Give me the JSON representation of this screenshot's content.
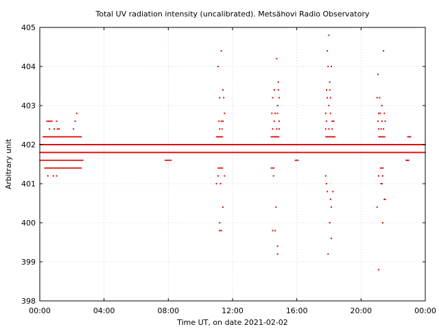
{
  "chart_data": {
    "type": "scatter",
    "title": "Total UV radiation intensity (uncalibrated). Metsähovi Radio Observatory",
    "xlabel": "Time UT, on date 2021-02-02",
    "ylabel": "Arbitrary unit",
    "xlim": [
      0,
      24
    ],
    "ylim": [
      398,
      405
    ],
    "x_ticks": [
      {
        "value": 0,
        "label": "00:00"
      },
      {
        "value": 4,
        "label": "04:00"
      },
      {
        "value": 8,
        "label": "08:00"
      },
      {
        "value": 12,
        "label": "12:00"
      },
      {
        "value": 16,
        "label": "16:00"
      },
      {
        "value": 20,
        "label": "20:00"
      },
      {
        "value": 24,
        "label": "00:00"
      }
    ],
    "y_ticks": [
      398,
      399,
      400,
      401,
      402,
      403,
      404,
      405
    ],
    "grid": true,
    "color": "#e00000",
    "baseline_series": [
      {
        "name": "402.0 band",
        "value": 402.0,
        "x_ranges": [
          [
            0.0,
            24.0
          ]
        ]
      },
      {
        "name": "401.8 band",
        "value": 401.8,
        "x_ranges": [
          [
            0.0,
            24.0
          ]
        ]
      },
      {
        "name": "401.6 band",
        "value": 401.6,
        "x_ranges": [
          [
            0.0,
            2.7
          ],
          [
            7.8,
            8.2
          ],
          [
            15.9,
            16.1
          ],
          [
            22.8,
            23.0
          ]
        ]
      },
      {
        "name": "402.2 band",
        "value": 402.2,
        "x_ranges": [
          [
            0.2,
            2.6
          ],
          [
            11.0,
            11.4
          ],
          [
            14.4,
            14.9
          ],
          [
            17.8,
            18.4
          ],
          [
            21.1,
            21.5
          ],
          [
            22.9,
            23.1
          ]
        ]
      },
      {
        "name": "401.4 band",
        "value": 401.4,
        "x_ranges": [
          [
            0.3,
            2.6
          ],
          [
            11.1,
            11.4
          ],
          [
            14.4,
            14.6
          ],
          [
            21.2,
            21.4
          ]
        ]
      }
    ],
    "points": [
      {
        "x": 0.45,
        "y": 402.6
      },
      {
        "x": 0.55,
        "y": 402.6
      },
      {
        "x": 0.65,
        "y": 402.6
      },
      {
        "x": 0.75,
        "y": 402.6
      },
      {
        "x": 0.6,
        "y": 402.4
      },
      {
        "x": 0.9,
        "y": 402.4
      },
      {
        "x": 1.05,
        "y": 402.6
      },
      {
        "x": 1.1,
        "y": 402.4
      },
      {
        "x": 1.2,
        "y": 402.4
      },
      {
        "x": 0.5,
        "y": 401.2
      },
      {
        "x": 0.85,
        "y": 401.2
      },
      {
        "x": 1.05,
        "y": 401.2
      },
      {
        "x": 2.1,
        "y": 402.4
      },
      {
        "x": 2.2,
        "y": 402.6
      },
      {
        "x": 2.3,
        "y": 402.8
      },
      {
        "x": 11.1,
        "y": 404.0
      },
      {
        "x": 11.3,
        "y": 404.4
      },
      {
        "x": 11.4,
        "y": 403.4
      },
      {
        "x": 11.2,
        "y": 403.2
      },
      {
        "x": 11.45,
        "y": 403.2
      },
      {
        "x": 11.5,
        "y": 402.8
      },
      {
        "x": 11.15,
        "y": 402.6
      },
      {
        "x": 11.3,
        "y": 402.6
      },
      {
        "x": 11.4,
        "y": 402.6
      },
      {
        "x": 11.2,
        "y": 402.4
      },
      {
        "x": 11.35,
        "y": 402.4
      },
      {
        "x": 11.1,
        "y": 401.2
      },
      {
        "x": 11.5,
        "y": 401.2
      },
      {
        "x": 11.0,
        "y": 401.0
      },
      {
        "x": 11.25,
        "y": 401.0
      },
      {
        "x": 11.4,
        "y": 400.4
      },
      {
        "x": 11.2,
        "y": 400.0
      },
      {
        "x": 11.2,
        "y": 399.8
      },
      {
        "x": 11.3,
        "y": 399.8
      },
      {
        "x": 14.75,
        "y": 404.2
      },
      {
        "x": 14.85,
        "y": 403.6
      },
      {
        "x": 14.6,
        "y": 403.4
      },
      {
        "x": 14.85,
        "y": 403.4
      },
      {
        "x": 14.5,
        "y": 403.2
      },
      {
        "x": 14.9,
        "y": 403.2
      },
      {
        "x": 14.8,
        "y": 403.0
      },
      {
        "x": 14.45,
        "y": 402.8
      },
      {
        "x": 14.65,
        "y": 402.8
      },
      {
        "x": 14.8,
        "y": 402.8
      },
      {
        "x": 14.6,
        "y": 402.6
      },
      {
        "x": 14.9,
        "y": 402.6
      },
      {
        "x": 14.5,
        "y": 402.4
      },
      {
        "x": 14.75,
        "y": 402.4
      },
      {
        "x": 14.9,
        "y": 402.4
      },
      {
        "x": 14.55,
        "y": 401.2
      },
      {
        "x": 14.7,
        "y": 400.4
      },
      {
        "x": 14.5,
        "y": 399.8
      },
      {
        "x": 14.65,
        "y": 399.8
      },
      {
        "x": 14.8,
        "y": 399.4
      },
      {
        "x": 14.8,
        "y": 399.2
      },
      {
        "x": 18.0,
        "y": 404.8
      },
      {
        "x": 17.9,
        "y": 404.4
      },
      {
        "x": 17.95,
        "y": 404.0
      },
      {
        "x": 18.15,
        "y": 404.0
      },
      {
        "x": 18.05,
        "y": 403.6
      },
      {
        "x": 17.85,
        "y": 403.4
      },
      {
        "x": 18.05,
        "y": 403.4
      },
      {
        "x": 17.9,
        "y": 403.2
      },
      {
        "x": 18.1,
        "y": 403.2
      },
      {
        "x": 18.0,
        "y": 403.0
      },
      {
        "x": 17.8,
        "y": 402.8
      },
      {
        "x": 18.1,
        "y": 402.8
      },
      {
        "x": 17.85,
        "y": 402.6
      },
      {
        "x": 18.2,
        "y": 402.6
      },
      {
        "x": 18.3,
        "y": 402.6
      },
      {
        "x": 17.8,
        "y": 402.4
      },
      {
        "x": 18.0,
        "y": 402.4
      },
      {
        "x": 18.2,
        "y": 402.4
      },
      {
        "x": 17.8,
        "y": 401.2
      },
      {
        "x": 17.85,
        "y": 401.0
      },
      {
        "x": 17.9,
        "y": 400.8
      },
      {
        "x": 18.25,
        "y": 400.8
      },
      {
        "x": 18.1,
        "y": 400.6
      },
      {
        "x": 18.15,
        "y": 400.4
      },
      {
        "x": 18.05,
        "y": 400.0
      },
      {
        "x": 18.15,
        "y": 399.6
      },
      {
        "x": 17.95,
        "y": 399.2
      },
      {
        "x": 21.05,
        "y": 403.8
      },
      {
        "x": 21.4,
        "y": 404.4
      },
      {
        "x": 21.0,
        "y": 403.2
      },
      {
        "x": 21.15,
        "y": 403.2
      },
      {
        "x": 21.3,
        "y": 403.0
      },
      {
        "x": 21.1,
        "y": 402.8
      },
      {
        "x": 21.2,
        "y": 402.8
      },
      {
        "x": 21.45,
        "y": 402.8
      },
      {
        "x": 21.05,
        "y": 402.6
      },
      {
        "x": 21.3,
        "y": 402.6
      },
      {
        "x": 21.1,
        "y": 402.4
      },
      {
        "x": 21.25,
        "y": 402.4
      },
      {
        "x": 21.4,
        "y": 402.4
      },
      {
        "x": 21.5,
        "y": 402.6
      },
      {
        "x": 21.1,
        "y": 401.2
      },
      {
        "x": 21.35,
        "y": 401.2
      },
      {
        "x": 21.25,
        "y": 401.0
      },
      {
        "x": 21.3,
        "y": 401.0
      },
      {
        "x": 21.45,
        "y": 400.6
      },
      {
        "x": 21.5,
        "y": 400.6
      },
      {
        "x": 21.0,
        "y": 400.4
      },
      {
        "x": 21.35,
        "y": 400.0
      },
      {
        "x": 21.1,
        "y": 398.8
      },
      {
        "x": 23.05,
        "y": 402.2
      },
      {
        "x": 22.85,
        "y": 401.6
      }
    ]
  }
}
